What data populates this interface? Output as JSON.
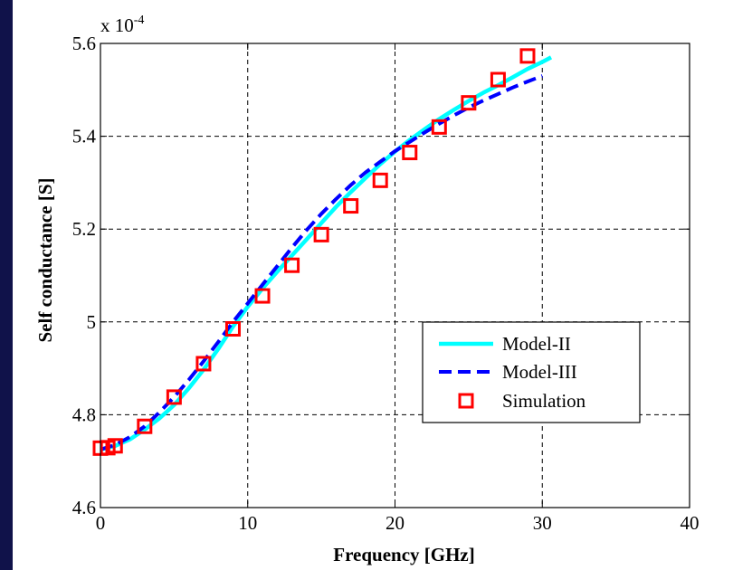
{
  "chart_data": {
    "type": "line",
    "xlabel": "Frequency [GHz]",
    "ylabel": "Self conductance [S]",
    "y_multiplier": "x 10",
    "y_multiplier_exponent": "-4",
    "xlim": [
      0,
      40
    ],
    "ylim": [
      4.6,
      5.6
    ],
    "x_ticks": [
      0,
      10,
      20,
      30,
      40
    ],
    "x_tick_labels": [
      "0",
      "10",
      "20",
      "30",
      "40"
    ],
    "y_ticks": [
      4.6,
      4.8,
      5.0,
      5.2,
      5.4,
      5.6
    ],
    "y_tick_labels": [
      "4.6",
      "4.8",
      "5",
      "5.2",
      "5.4",
      "5.6"
    ],
    "grid": true,
    "legend_position": "lower-right",
    "series": [
      {
        "name": "Model-II",
        "style": "solid",
        "color": "#00ffff",
        "x": [
          0,
          1,
          2,
          3,
          4,
          5,
          6,
          7,
          8,
          9,
          10,
          11,
          12,
          13,
          14,
          15,
          16,
          17,
          18,
          19,
          20,
          21,
          22,
          23,
          24,
          25,
          26,
          27,
          28,
          29,
          30,
          30.6
        ],
        "y": [
          4.725,
          4.733,
          4.747,
          4.768,
          4.792,
          4.821,
          4.857,
          4.897,
          4.942,
          4.99,
          5.033,
          5.072,
          5.108,
          5.143,
          5.178,
          5.213,
          5.248,
          5.28,
          5.31,
          5.34,
          5.367,
          5.392,
          5.415,
          5.437,
          5.457,
          5.476,
          5.494,
          5.51,
          5.527,
          5.545,
          5.56,
          5.57
        ]
      },
      {
        "name": "Model-III",
        "style": "dashed",
        "color": "#0000ff",
        "x": [
          0,
          1,
          2,
          3,
          4,
          5,
          6,
          7,
          8,
          9,
          10,
          11,
          12,
          13,
          14,
          15,
          16,
          17,
          18,
          19,
          20,
          21,
          22,
          23,
          24,
          25,
          26,
          27,
          28,
          29,
          30
        ],
        "y": [
          4.725,
          4.735,
          4.752,
          4.775,
          4.805,
          4.838,
          4.875,
          4.915,
          4.957,
          5.0,
          5.04,
          5.08,
          5.12,
          5.16,
          5.198,
          5.233,
          5.265,
          5.295,
          5.322,
          5.345,
          5.368,
          5.388,
          5.408,
          5.427,
          5.445,
          5.462,
          5.477,
          5.491,
          5.505,
          5.518,
          5.53
        ]
      },
      {
        "name": "Simulation",
        "style": "markers",
        "color": "#ff0000",
        "x": [
          0,
          0.5,
          1,
          3,
          5,
          7,
          9,
          11,
          13,
          15,
          17,
          19,
          21,
          23,
          25,
          27,
          29
        ],
        "y": [
          4.728,
          4.729,
          4.733,
          4.775,
          4.838,
          4.91,
          4.985,
          5.056,
          5.122,
          5.188,
          5.25,
          5.305,
          5.365,
          5.42,
          5.472,
          5.522,
          5.573
        ]
      }
    ]
  }
}
